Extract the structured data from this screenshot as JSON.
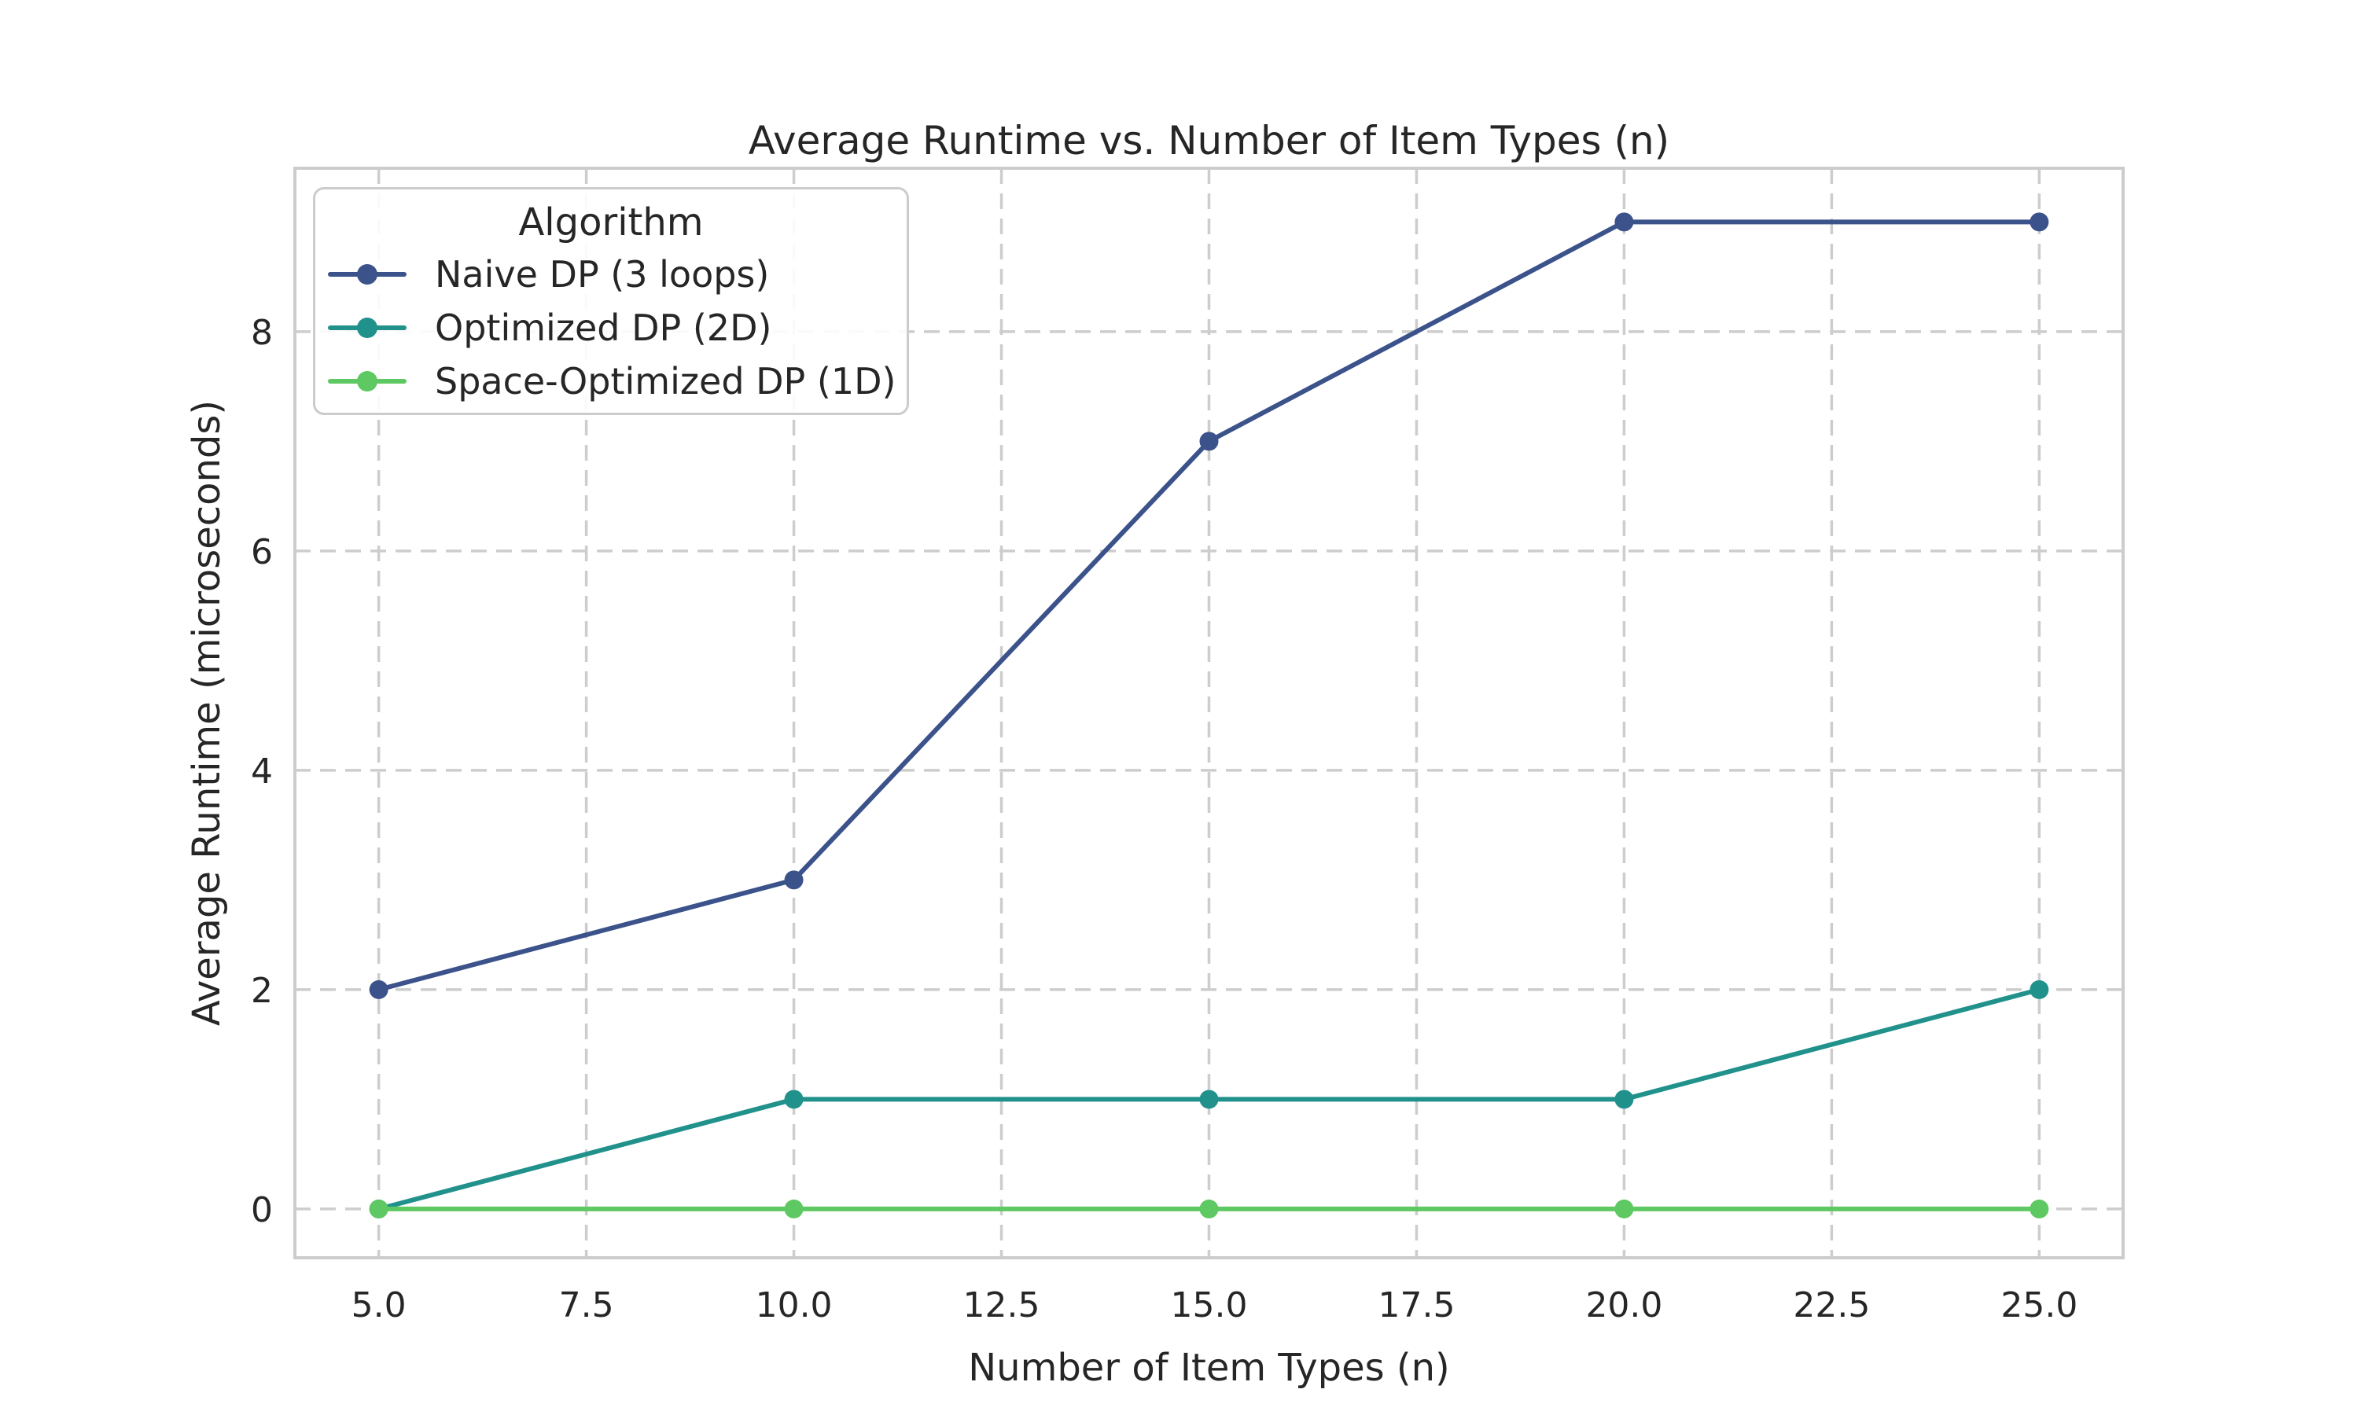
{
  "chart_data": {
    "type": "line",
    "title": "Average Runtime vs. Number of Item Types (n)",
    "xlabel": "Number of Item Types (n)",
    "ylabel": "Average Runtime (microseconds)",
    "x": [
      5,
      10,
      15,
      20,
      25
    ],
    "series": [
      {
        "name": "Naive DP (3 loops)",
        "color": "#3b528b",
        "values": [
          2,
          3,
          7,
          9,
          9
        ]
      },
      {
        "name": "Optimized DP (2D)",
        "color": "#21918c",
        "values": [
          0,
          1,
          1,
          1,
          2
        ]
      },
      {
        "name": "Space-Optimized DP (1D)",
        "color": "#5ec962",
        "values": [
          0,
          0,
          0,
          0,
          0
        ]
      }
    ],
    "x_ticks": {
      "values": [
        5,
        7.5,
        10,
        12.5,
        15,
        17.5,
        20,
        22.5,
        25
      ],
      "labels": [
        "5.0",
        "7.5",
        "10.0",
        "12.5",
        "15.0",
        "17.5",
        "20.0",
        "22.5",
        "25.0"
      ]
    },
    "y_ticks": {
      "values": [
        0,
        2,
        4,
        6,
        8
      ],
      "labels": [
        "0",
        "2",
        "4",
        "6",
        "8"
      ]
    },
    "xlim": [
      3.99,
      26.01
    ],
    "ylim": [
      -0.445,
      9.49
    ],
    "grid": "dashed",
    "legend": {
      "title": "Algorithm",
      "position": "upper-left"
    }
  },
  "style": {
    "background": "#ffffff",
    "grid_color": "#cdcdcd",
    "spine_color": "#cccccc",
    "text_color": "#262626",
    "tick_font_size": 44,
    "line_width": 6,
    "marker_radius": 12
  }
}
